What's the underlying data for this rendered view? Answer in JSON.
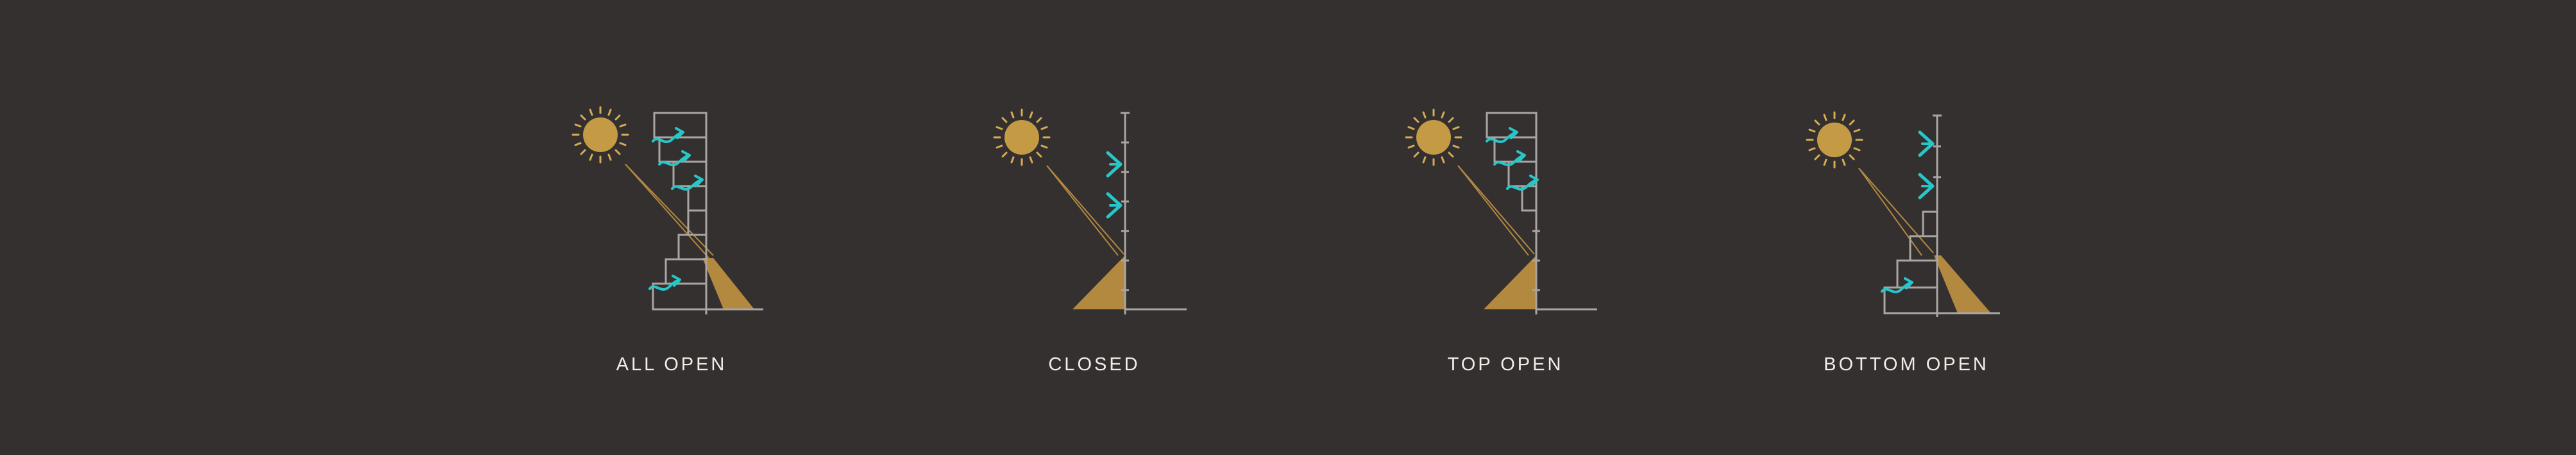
{
  "panels": [
    {
      "label": "ALL OPEN"
    },
    {
      "label": "CLOSED"
    },
    {
      "label": "TOP OPEN"
    },
    {
      "label": "BOTTOM OPEN"
    }
  ],
  "colors": {
    "background": "#343030",
    "sun": "#c49a45",
    "sun_ray": "#d6ab52",
    "light_beam": "#b2893f",
    "structure": "#a9a6a2",
    "airflow": "#27c7c9",
    "label": "#f1eee6"
  },
  "icons": [
    "sun-icon",
    "building-section-icon",
    "airflow-arrow-icon",
    "shading-louver-icon"
  ]
}
